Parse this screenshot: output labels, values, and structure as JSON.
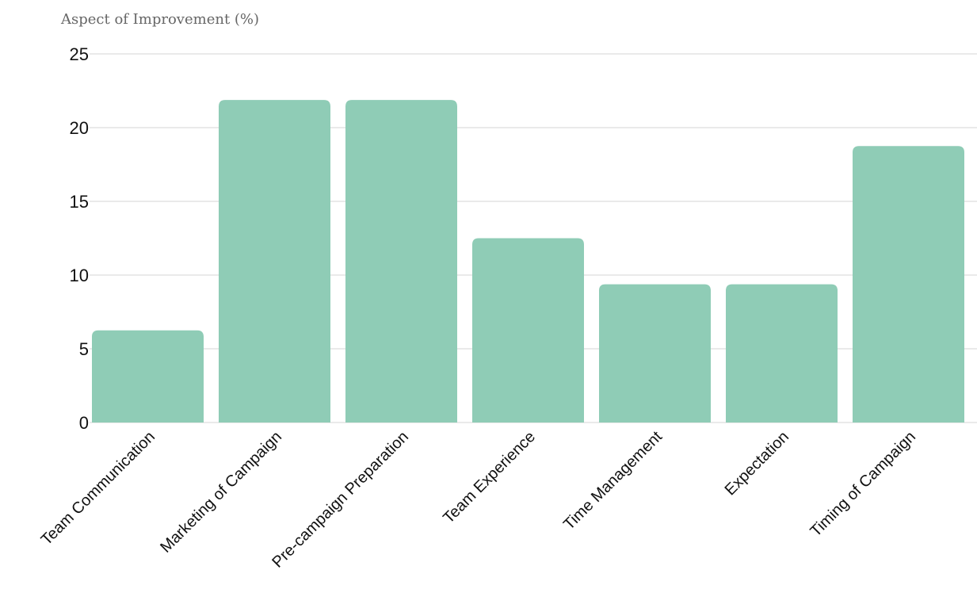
{
  "chart_data": {
    "type": "bar",
    "title": "Aspect of Improvement (%)",
    "categories": [
      "Team Communication",
      "Marketing of Campaign",
      "Pre-campaign Preparation",
      "Team Experience",
      "Time Management",
      "Expectation",
      "Timing of Campaign"
    ],
    "values": [
      6.25,
      21.875,
      21.875,
      12.5,
      9.375,
      9.375,
      18.75
    ],
    "yticks": [
      0,
      5,
      10,
      15,
      20,
      25
    ],
    "ylim": [
      0,
      25
    ],
    "grid": true,
    "bar_color": "#8fccb6"
  }
}
